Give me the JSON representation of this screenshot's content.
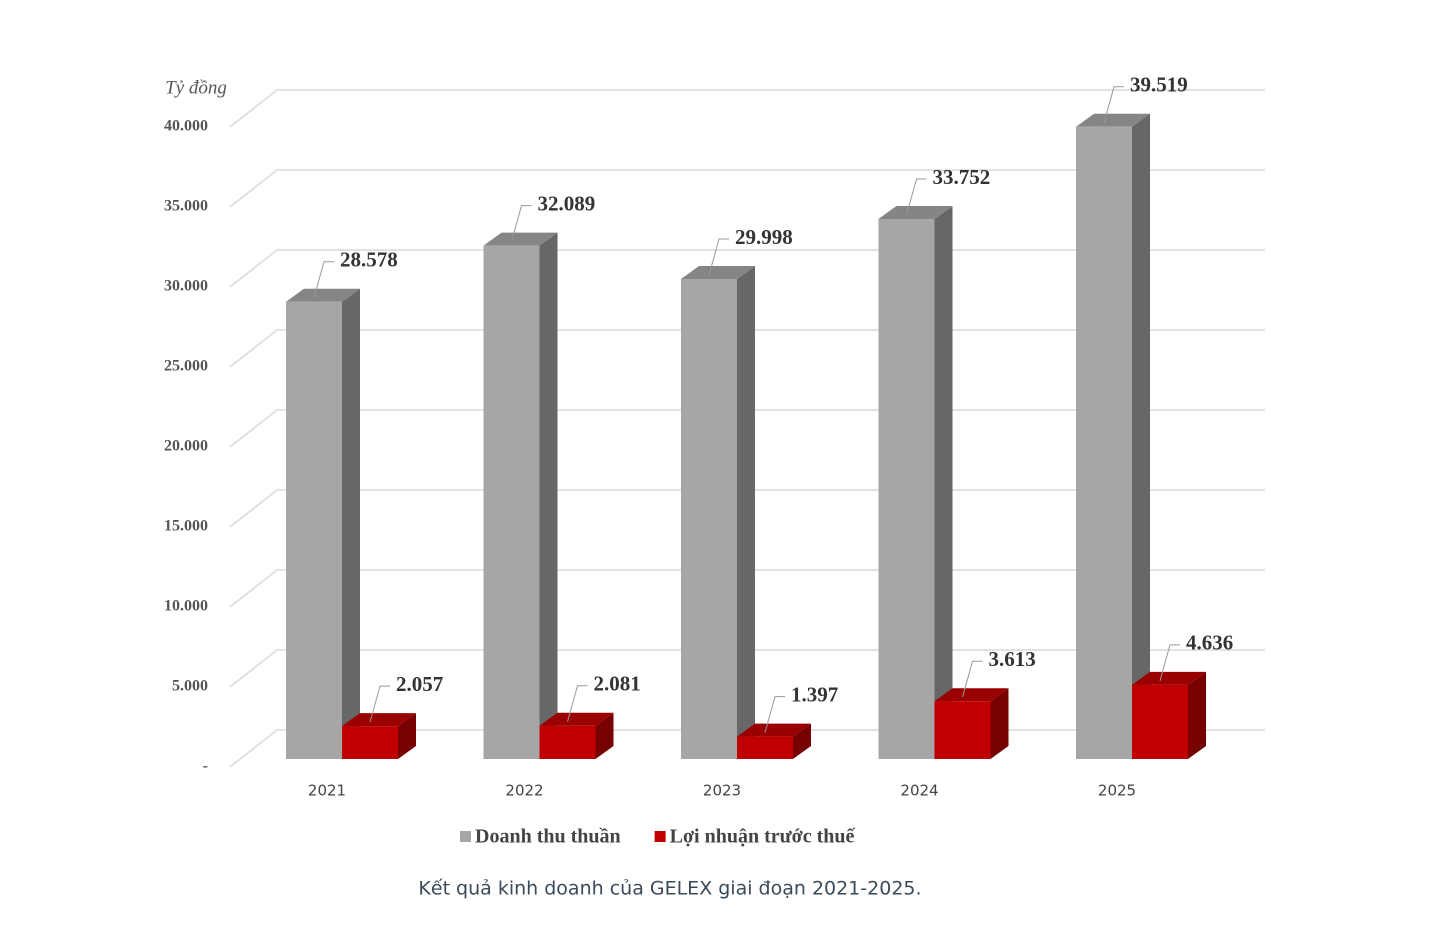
{
  "chart_data": {
    "type": "bar3d",
    "y_axis_label": "Tỷ đồng",
    "caption": "Kết quả kinh doanh của GELEX giai đoạn 2021-2025.",
    "categories": [
      "2021",
      "2022",
      "2023",
      "2024",
      "2025"
    ],
    "series": [
      {
        "name": "Doanh thu thuần",
        "color": "#a6a6a6",
        "values": [
          28578,
          32089,
          29998,
          33752,
          39519
        ],
        "value_labels": [
          "28.578",
          "32.089",
          "29.998",
          "33.752",
          "39.519"
        ]
      },
      {
        "name": "Lợi nhuận trước thuế",
        "color": "#c00000",
        "values": [
          2057,
          2081,
          1397,
          3613,
          4636
        ],
        "value_labels": [
          "2.057",
          "2.081",
          "1.397",
          "3.613",
          "4.636"
        ]
      }
    ],
    "ylim": [
      0,
      40000
    ],
    "yticks": [
      {
        "value": 0,
        "label": "-"
      },
      {
        "value": 5000,
        "label": "5.000"
      },
      {
        "value": 10000,
        "label": "10.000"
      },
      {
        "value": 15000,
        "label": "15.000"
      },
      {
        "value": 20000,
        "label": "20.000"
      },
      {
        "value": 25000,
        "label": "25.000"
      },
      {
        "value": 30000,
        "label": "30.000"
      },
      {
        "value": 35000,
        "label": "35.000"
      },
      {
        "value": 40000,
        "label": "40.000"
      }
    ],
    "grid": true,
    "legend": "bottom"
  }
}
